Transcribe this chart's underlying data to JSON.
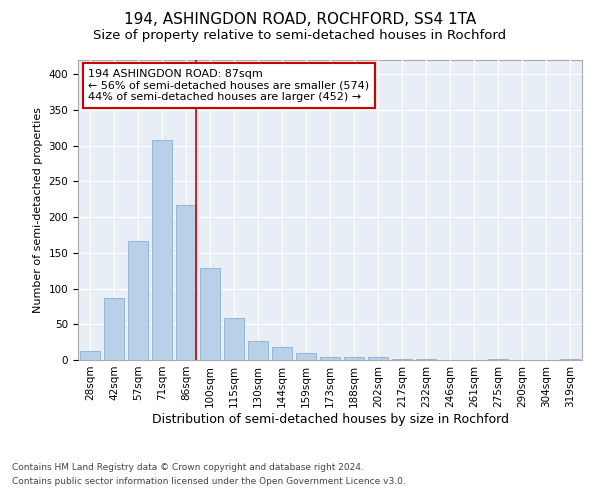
{
  "title1": "194, ASHINGDON ROAD, ROCHFORD, SS4 1TA",
  "title2": "Size of property relative to semi-detached houses in Rochford",
  "xlabel": "Distribution of semi-detached houses by size in Rochford",
  "ylabel": "Number of semi-detached properties",
  "categories": [
    "28sqm",
    "42sqm",
    "57sqm",
    "71sqm",
    "86sqm",
    "100sqm",
    "115sqm",
    "130sqm",
    "144sqm",
    "159sqm",
    "173sqm",
    "188sqm",
    "202sqm",
    "217sqm",
    "232sqm",
    "246sqm",
    "261sqm",
    "275sqm",
    "290sqm",
    "304sqm",
    "319sqm"
  ],
  "values": [
    13,
    87,
    167,
    308,
    217,
    129,
    59,
    26,
    18,
    10,
    4,
    4,
    4,
    2,
    2,
    0,
    0,
    2,
    0,
    0,
    2
  ],
  "bar_color": "#b8d0e8",
  "bar_edge_color": "#8ab0d0",
  "vline_index": 4,
  "vline_color": "#cc0000",
  "annotation_line1": "194 ASHINGDON ROAD: 87sqm",
  "annotation_line2": "← 56% of semi-detached houses are smaller (574)",
  "annotation_line3": "44% of semi-detached houses are larger (452) →",
  "annotation_box_edgecolor": "#cc0000",
  "plot_bg_color": "#e8eef5",
  "ylim": [
    0,
    420
  ],
  "yticks": [
    0,
    50,
    100,
    150,
    200,
    250,
    300,
    350,
    400
  ],
  "footer_line1": "Contains HM Land Registry data © Crown copyright and database right 2024.",
  "footer_line2": "Contains public sector information licensed under the Open Government Licence v3.0.",
  "title1_fontsize": 11,
  "title2_fontsize": 9.5,
  "xlabel_fontsize": 9,
  "ylabel_fontsize": 8,
  "tick_fontsize": 7.5,
  "annotation_fontsize": 8,
  "footer_fontsize": 6.5
}
